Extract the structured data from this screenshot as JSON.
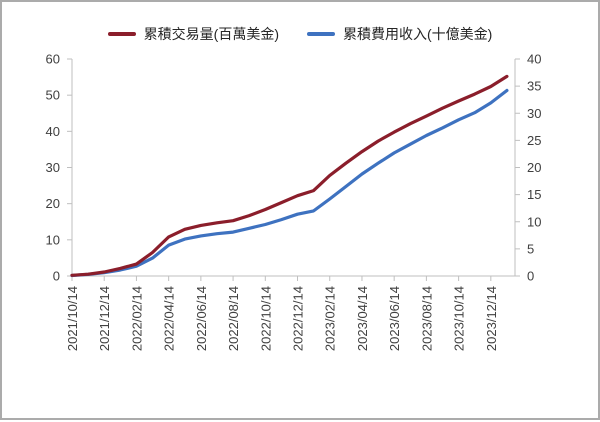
{
  "legend": {
    "items": [
      {
        "label": "累積交易量(百萬美金)",
        "color": "#8b1e2b"
      },
      {
        "label": "累積費用收入(十億美金)",
        "color": "#3e72c0"
      }
    ]
  },
  "chart_data": {
    "type": "line",
    "title": "",
    "xlabel": "",
    "ylabel_left": "",
    "ylabel_right": "",
    "grid": false,
    "legend_position": "top",
    "x": [
      "2021/10/14",
      "2021/11/14",
      "2021/12/14",
      "2022/01/14",
      "2022/02/14",
      "2022/03/14",
      "2022/04/14",
      "2022/05/14",
      "2022/06/14",
      "2022/07/14",
      "2022/08/14",
      "2022/09/14",
      "2022/10/14",
      "2022/11/14",
      "2022/12/14",
      "2023/01/14",
      "2023/02/14",
      "2023/03/14",
      "2023/04/14",
      "2023/05/14",
      "2023/06/14",
      "2023/07/14",
      "2023/08/14",
      "2023/09/14",
      "2023/10/14",
      "2023/11/14",
      "2023/12/14",
      "2024/01/14"
    ],
    "x_tick_labels": [
      "2021/10/14",
      "2021/12/14",
      "2022/02/14",
      "2022/04/14",
      "2022/06/14",
      "2022/08/14",
      "2022/10/14",
      "2022/12/14",
      "2023/02/14",
      "2023/04/14",
      "2023/06/14",
      "2023/08/14",
      "2023/10/14",
      "2023/12/14"
    ],
    "x_tick_every": 2,
    "series": [
      {
        "name": "累積交易量(百萬美金)",
        "axis": "left",
        "color": "#8b1e2b",
        "values": [
          0.2,
          0.5,
          1.1,
          2.1,
          3.3,
          6.5,
          10.8,
          12.9,
          14.0,
          14.7,
          15.3,
          16.7,
          18.4,
          20.3,
          22.2,
          23.6,
          27.8,
          31.2,
          34.4,
          37.3,
          39.8,
          42.1,
          44.2,
          46.4,
          48.4,
          50.3,
          52.4,
          55.2
        ]
      },
      {
        "name": "累積費用收入(十億美金)",
        "axis": "right",
        "color": "#3e72c0",
        "values": [
          0.1,
          0.3,
          0.6,
          1.1,
          1.8,
          3.3,
          5.7,
          6.8,
          7.4,
          7.8,
          8.1,
          8.8,
          9.5,
          10.4,
          11.4,
          12.0,
          14.2,
          16.5,
          18.8,
          20.8,
          22.7,
          24.3,
          25.9,
          27.3,
          28.8,
          30.1,
          31.9,
          34.2
        ]
      }
    ],
    "left_axis": {
      "min": 0,
      "max": 60,
      "step": 10,
      "ticks": [
        "0",
        "10",
        "20",
        "30",
        "40",
        "50",
        "60"
      ]
    },
    "right_axis": {
      "min": 0,
      "max": 40,
      "step": 5,
      "ticks": [
        "0",
        "5",
        "10",
        "15",
        "20",
        "25",
        "30",
        "35",
        "40"
      ]
    }
  },
  "colors": {
    "axis_line": "#bfbfbf",
    "tick_text": "#404040",
    "background": "#ffffff",
    "frame_border": "#ababab"
  }
}
